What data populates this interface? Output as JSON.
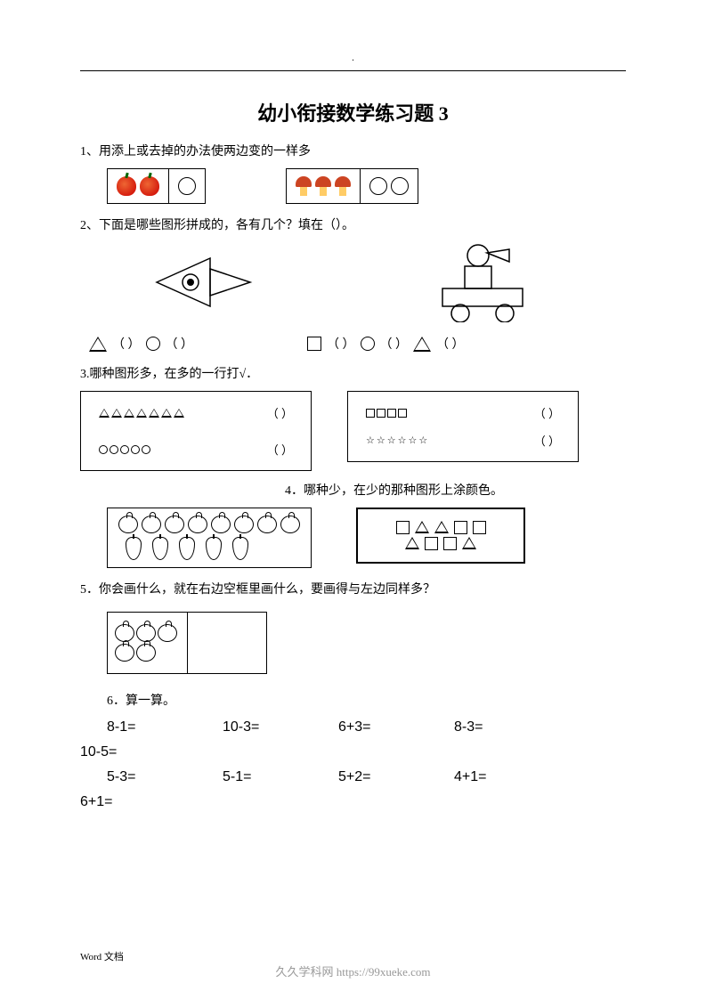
{
  "header": {
    "mark": "."
  },
  "title": "幼小衔接数学练习题 3",
  "q1": {
    "text": "1、用添上或去掉的办法使两边变的一样多",
    "left_group": {
      "apples": 2,
      "circles": 1
    },
    "right_group": {
      "mushrooms": 3,
      "circles": 2
    }
  },
  "q2": {
    "text": "2、下面是哪些图形拼成的，各有几个？填在（）。",
    "blanks": {
      "left_tri": "（   ）",
      "left_circ": "（   ）",
      "right_sq": "（   ）",
      "right_circ": "（   ）",
      "right_tri": "（   ）"
    }
  },
  "q3": {
    "text": "3.哪种图形多，在多的一行打√．",
    "box1": {
      "row1": {
        "triangles": 7,
        "blank": "（     ）"
      },
      "row2": {
        "circles": 5,
        "blank": "（     ）"
      }
    },
    "box2": {
      "row1": {
        "squares": 4,
        "blank": "（     ）"
      },
      "row2": {
        "stars": 6,
        "blank": "（     ）"
      }
    }
  },
  "q4": {
    "text": "4．哪种少，在少的那种图形上涂颜色。",
    "fruits": {
      "tomatoes": 8,
      "pears": 5
    },
    "shapes": {
      "row1": [
        "sq",
        "tri",
        "tri",
        "sq",
        "sq"
      ],
      "row2": [
        "tri",
        "sq",
        "sq",
        "tri"
      ]
    }
  },
  "q5": {
    "text": "5．你会画什么，就在右边空框里画什么，要画得与左边同样多？",
    "tomatoes": 5
  },
  "q6": {
    "text": "6．算一算。",
    "row1": [
      "8-1=",
      "10-3=",
      "6+3=",
      "8-3="
    ],
    "single1": "10-5=",
    "row2": [
      "5-3=",
      "5-1=",
      "5+2=",
      "4+1="
    ],
    "single2": "6+1="
  },
  "footer": "Word 文档",
  "watermark": "久久学科网 https://99xueke.com"
}
